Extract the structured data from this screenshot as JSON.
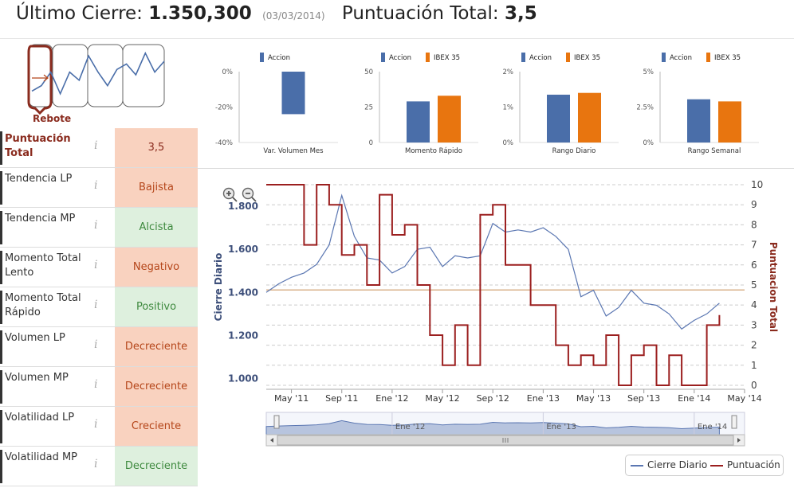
{
  "header": {
    "cierre_label": "Último Cierre:",
    "cierre_value": "1.350,300",
    "cierre_date": "(03/03/2014)",
    "punt_label": "Puntuación Total:",
    "punt_value": "3,5"
  },
  "pattern": {
    "label": "Rebote",
    "points": [
      0.2,
      0.3,
      0.55,
      0.15,
      0.55,
      0.4,
      0.85,
      0.55,
      0.3,
      0.6,
      0.7,
      0.5,
      0.9,
      0.55,
      0.75
    ]
  },
  "colors": {
    "accion": "#4a6ea9",
    "ibex": "#e8750f",
    "cierre": "#5b77b2",
    "punt": "#9b1f1f",
    "red_bg": "#f9d2bf",
    "green_bg": "#def0de"
  },
  "metrics": [
    {
      "name": "Puntuación Total",
      "value": "3,5",
      "status": "red",
      "total": true
    },
    {
      "name": "Tendencia LP",
      "value": "Bajista",
      "status": "red"
    },
    {
      "name": "Tendencia MP",
      "value": "Alcista",
      "status": "green"
    },
    {
      "name": "Momento Total Lento",
      "value": "Negativo",
      "status": "red"
    },
    {
      "name": "Momento Total Rápido",
      "value": "Positivo",
      "status": "green"
    },
    {
      "name": "Volumen LP",
      "value": "Decreciente",
      "status": "red"
    },
    {
      "name": "Volumen MP",
      "value": "Decreciente",
      "status": "red"
    },
    {
      "name": "Volatilidad LP",
      "value": "Creciente",
      "status": "red"
    },
    {
      "name": "Volatilidad MP",
      "value": "Decreciente",
      "status": "green"
    }
  ],
  "chart_data": [
    {
      "type": "bar",
      "title": "Var. Volumen Mes",
      "series": [
        {
          "name": "Accion",
          "values": [
            -24
          ]
        }
      ],
      "yticks": [
        "0%",
        "-20%",
        "-40%"
      ],
      "ylim": [
        -40,
        0
      ]
    },
    {
      "type": "bar",
      "title": "Momento Rápido",
      "series": [
        {
          "name": "Accion",
          "values": [
            29
          ]
        },
        {
          "name": "IBEX 35",
          "values": [
            33
          ]
        }
      ],
      "yticks": [
        "50",
        "25",
        "0"
      ],
      "ylim": [
        0,
        50
      ]
    },
    {
      "type": "bar",
      "title": "Rango Diario",
      "series": [
        {
          "name": "Accion",
          "values": [
            1.35
          ]
        },
        {
          "name": "IBEX 35",
          "values": [
            1.4
          ]
        }
      ],
      "yticks": [
        "2%",
        "1%",
        "0%"
      ],
      "ylim": [
        0,
        2
      ]
    },
    {
      "type": "bar",
      "title": "Rango Semanal",
      "series": [
        {
          "name": "Accion",
          "values": [
            3.05
          ]
        },
        {
          "name": "IBEX 35",
          "values": [
            2.9
          ]
        }
      ],
      "yticks": [
        "5%",
        "2.5%",
        "0%"
      ],
      "ylim": [
        0,
        5
      ]
    },
    {
      "type": "line",
      "ylabel": "Cierre Diario",
      "y2label": "Puntuacion Total",
      "xticks": [
        "May '11",
        "Sep '11",
        "Ene '12",
        "May '12",
        "Sep '12",
        "Ene '13",
        "May '13",
        "Sep '13",
        "Ene '14",
        "May '14"
      ],
      "xlim": [
        "2011-03",
        "2014-05"
      ],
      "ylim": [
        950,
        1900
      ],
      "yticks": [
        "1.800",
        "1.600",
        "1.400",
        "1.200",
        "1.000"
      ],
      "y2lim": [
        -0.2,
        10
      ],
      "y2ticks": [
        "10",
        "9",
        "8",
        "7",
        "6",
        "5",
        "4",
        "3",
        "2",
        "1",
        "0"
      ],
      "reference_value": 4.75,
      "navigator_ticks": [
        "Ene '12",
        "Ene '13",
        "Ene '14"
      ],
      "series": [
        {
          "name": "Cierre Diario",
          "x": [
            "2011-03",
            "2011-04",
            "2011-05",
            "2011-06",
            "2011-07",
            "2011-08",
            "2011-09",
            "2011-10",
            "2011-11",
            "2011-12",
            "2012-01",
            "2012-02",
            "2012-03",
            "2012-04",
            "2012-05",
            "2012-06",
            "2012-07",
            "2012-08",
            "2012-09",
            "2012-10",
            "2012-11",
            "2012-12",
            "2013-01",
            "2013-02",
            "2013-03",
            "2013-04",
            "2013-05",
            "2013-06",
            "2013-07",
            "2013-08",
            "2013-09",
            "2013-10",
            "2013-11",
            "2013-12",
            "2014-01",
            "2014-02",
            "2014-03"
          ],
          "y": [
            1400,
            1440,
            1470,
            1490,
            1530,
            1620,
            1850,
            1660,
            1560,
            1550,
            1490,
            1520,
            1600,
            1610,
            1520,
            1570,
            1560,
            1570,
            1720,
            1680,
            1690,
            1680,
            1700,
            1660,
            1600,
            1380,
            1410,
            1290,
            1330,
            1410,
            1350,
            1340,
            1300,
            1230,
            1270,
            1300,
            1350
          ]
        },
        {
          "name": "Puntuación",
          "x": [
            "2011-03",
            "2011-05",
            "2011-06",
            "2011-07",
            "2011-08",
            "2011-09",
            "2011-10",
            "2011-11",
            "2011-12",
            "2012-01",
            "2012-02",
            "2012-03",
            "2012-04",
            "2012-05",
            "2012-06",
            "2012-07",
            "2012-08",
            "2012-09",
            "2012-10",
            "2012-11",
            "2012-12",
            "2013-01",
            "2013-02",
            "2013-03",
            "2013-04",
            "2013-05",
            "2013-06",
            "2013-07",
            "2013-08",
            "2013-09",
            "2013-10",
            "2013-11",
            "2013-12",
            "2014-01",
            "2014-02",
            "2014-03"
          ],
          "y": [
            10,
            10,
            7,
            10,
            9,
            6.5,
            7,
            5,
            9.5,
            7.5,
            8,
            5,
            2.5,
            1,
            3,
            1,
            8.5,
            9,
            6,
            6,
            4,
            4,
            2,
            1,
            1.5,
            1,
            2.5,
            0,
            1.5,
            2,
            0,
            1.5,
            0,
            0,
            3,
            3.5
          ]
        }
      ]
    }
  ]
}
